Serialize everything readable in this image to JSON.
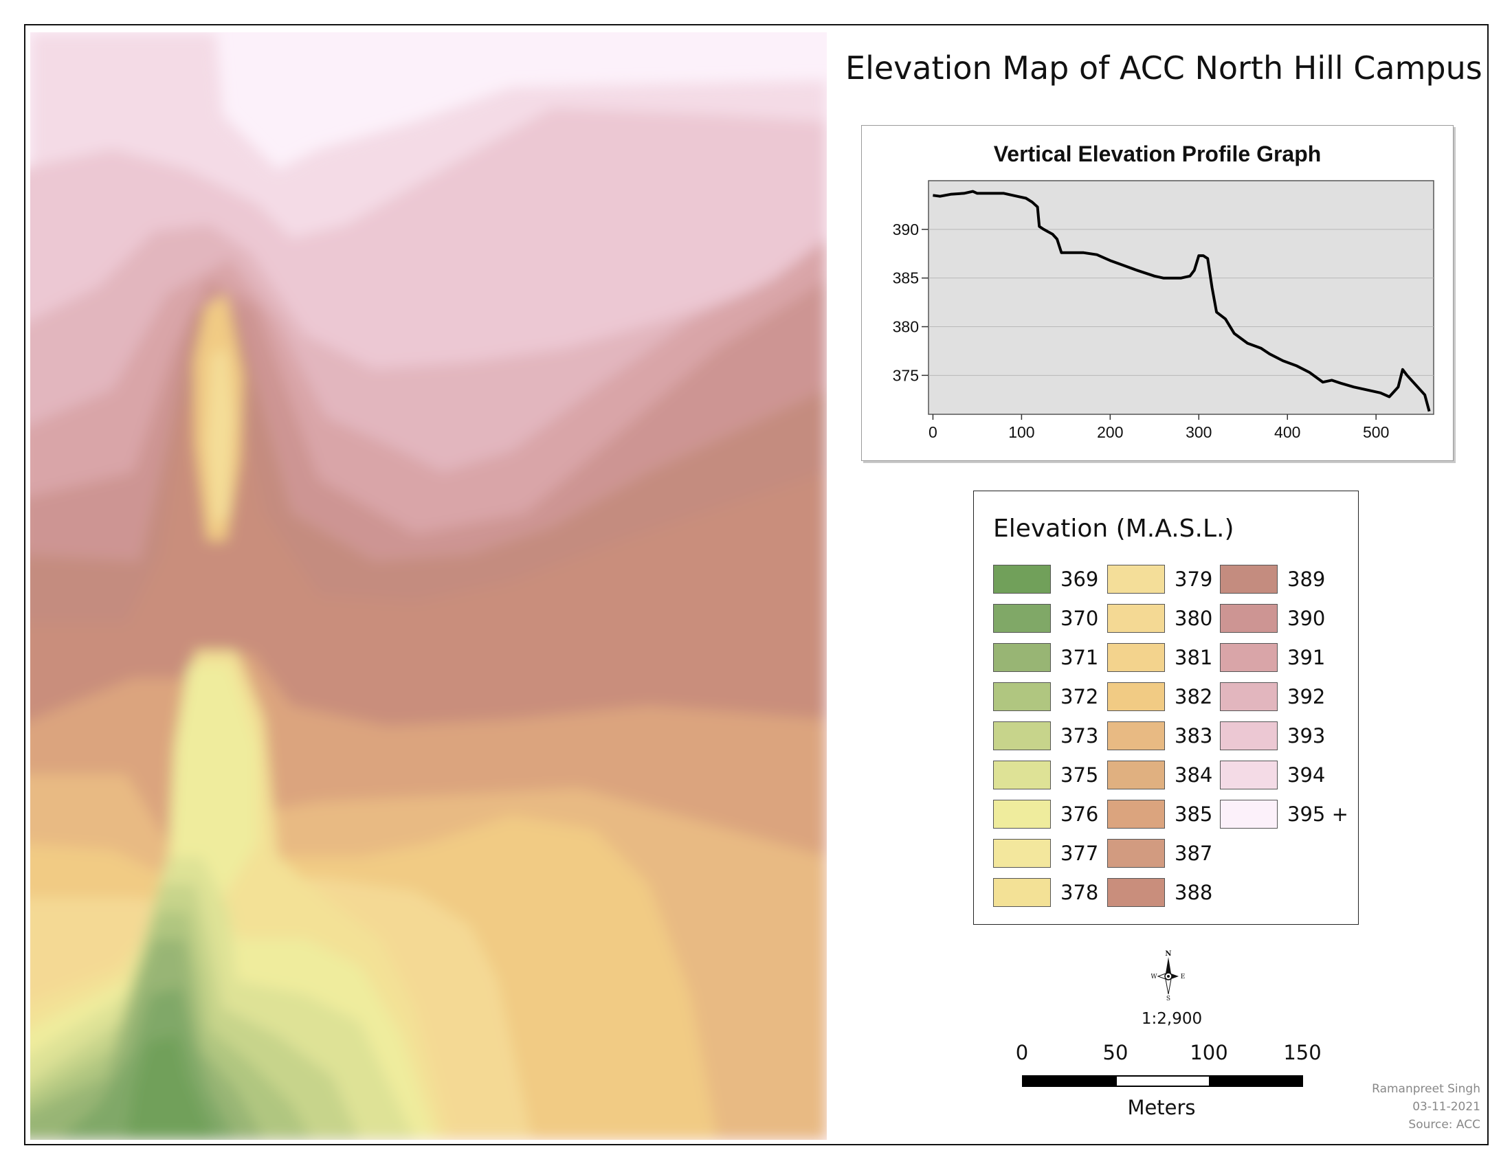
{
  "title": "Elevation Map of ACC North Hill Campus",
  "profile_graph": {
    "title": "Vertical Elevation Profile Graph"
  },
  "chart_data": {
    "type": "line",
    "title": "Vertical Elevation Profile Graph",
    "xlabel": "",
    "ylabel": "",
    "xlim": [
      -5,
      565
    ],
    "ylim": [
      371,
      395
    ],
    "xticks": [
      0,
      100,
      200,
      300,
      400,
      500
    ],
    "yticks": [
      375,
      380,
      385,
      390
    ],
    "grid": true,
    "series": [
      {
        "x": [
          0,
          8,
          20,
          35,
          45,
          50,
          60,
          80,
          95,
          105,
          112,
          118,
          120,
          125,
          135,
          140,
          145,
          150,
          170,
          185,
          200,
          215,
          230,
          250,
          260,
          280,
          290,
          295,
          300,
          305,
          310,
          315,
          320,
          330,
          340,
          355,
          370,
          380,
          395,
          410,
          425,
          440,
          450,
          460,
          475,
          490,
          505,
          515,
          520,
          525,
          530,
          535,
          545,
          555,
          560
        ],
        "values": [
          393.5,
          393.4,
          393.6,
          393.7,
          393.9,
          393.7,
          393.7,
          393.7,
          393.4,
          393.2,
          392.8,
          392.3,
          390.3,
          390.0,
          389.5,
          389.0,
          387.6,
          387.6,
          387.6,
          387.4,
          386.8,
          386.3,
          385.8,
          385.2,
          385.0,
          385.0,
          385.2,
          385.8,
          387.3,
          387.3,
          387.0,
          384.0,
          381.5,
          380.8,
          379.3,
          378.3,
          377.8,
          377.2,
          376.5,
          376.0,
          375.3,
          374.3,
          374.5,
          374.2,
          373.8,
          373.5,
          373.2,
          372.8,
          373.3,
          373.8,
          375.6,
          375.0,
          374.0,
          373.0,
          371.3
        ]
      }
    ]
  },
  "legend": {
    "title": "Elevation (M.A.S.L.)",
    "items": [
      {
        "label": "369",
        "color": "#71a05a"
      },
      {
        "label": "370",
        "color": "#80a867"
      },
      {
        "label": "371",
        "color": "#98b574"
      },
      {
        "label": "372",
        "color": "#b0c680"
      },
      {
        "label": "373",
        "color": "#c7d48b"
      },
      {
        "label": "375",
        "color": "#dee296"
      },
      {
        "label": "376",
        "color": "#efec9d"
      },
      {
        "label": "377",
        "color": "#f3e79d"
      },
      {
        "label": "378",
        "color": "#f3e196"
      },
      {
        "label": "379",
        "color": "#f4de99"
      },
      {
        "label": "380",
        "color": "#f4d994"
      },
      {
        "label": "381",
        "color": "#f3d38d"
      },
      {
        "label": "382",
        "color": "#f1cb84"
      },
      {
        "label": "383",
        "color": "#e8ba83"
      },
      {
        "label": "384",
        "color": "#e0b080"
      },
      {
        "label": "385",
        "color": "#dba47e"
      },
      {
        "label": "387",
        "color": "#d29b80"
      },
      {
        "label": "388",
        "color": "#c98e7c"
      },
      {
        "label": "389",
        "color": "#c48c7f"
      },
      {
        "label": "390",
        "color": "#cd9593"
      },
      {
        "label": "391",
        "color": "#d9a5a8"
      },
      {
        "label": "392",
        "color": "#e2b6be"
      },
      {
        "label": "393",
        "color": "#ecc8d3"
      },
      {
        "label": "394",
        "color": "#f4dbe6"
      },
      {
        "label": "395 +",
        "color": "#fcf1fa"
      }
    ]
  },
  "north_arrow": {
    "n": "N",
    "s": "S",
    "e": "E",
    "w": "W"
  },
  "scale": {
    "ratio": "1:2,900",
    "ticks": [
      "0",
      "50",
      "100",
      "150"
    ],
    "unit": "Meters"
  },
  "credits": {
    "author": "Ramanpreet Singh",
    "date": "03-11-2021",
    "source": "Source: ACC"
  }
}
